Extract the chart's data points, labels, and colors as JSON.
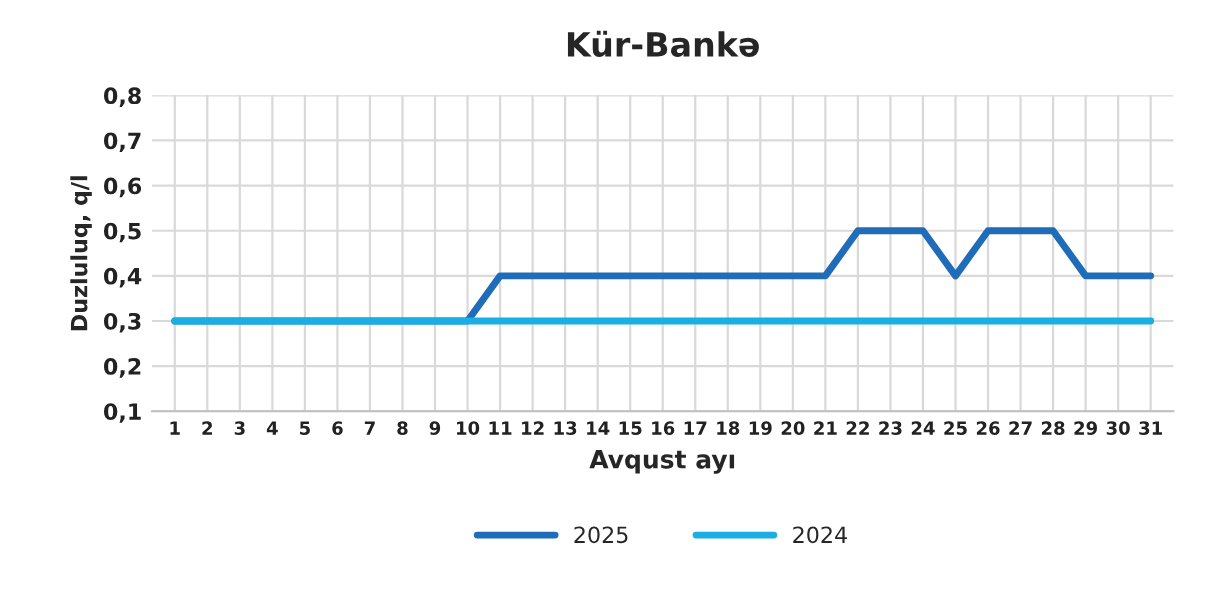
{
  "chart_data": {
    "type": "line",
    "title": "Kür-Bankə",
    "xlabel": "Avqust ayı",
    "ylabel": "Duzluluq, q/l",
    "categories": [
      "1",
      "2",
      "3",
      "4",
      "5",
      "6",
      "7",
      "8",
      "9",
      "10",
      "11",
      "12",
      "13",
      "14",
      "15",
      "16",
      "17",
      "18",
      "19",
      "20",
      "21",
      "22",
      "23",
      "24",
      "25",
      "26",
      "27",
      "28",
      "29",
      "30",
      "31"
    ],
    "series": [
      {
        "name": "2025",
        "color": "#1f6db8",
        "values": [
          0.3,
          0.3,
          0.3,
          0.3,
          0.3,
          0.3,
          0.3,
          0.3,
          0.3,
          0.3,
          0.4,
          0.4,
          0.4,
          0.4,
          0.4,
          0.4,
          0.4,
          0.4,
          0.4,
          0.4,
          0.4,
          0.5,
          0.5,
          0.5,
          0.4,
          0.5,
          0.5,
          0.5,
          0.4,
          0.4,
          0.4
        ]
      },
      {
        "name": "2024",
        "color": "#1aaee5",
        "values": [
          0.3,
          0.3,
          0.3,
          0.3,
          0.3,
          0.3,
          0.3,
          0.3,
          0.3,
          0.3,
          0.3,
          0.3,
          0.3,
          0.3,
          0.3,
          0.3,
          0.3,
          0.3,
          0.3,
          0.3,
          0.3,
          0.3,
          0.3,
          0.3,
          0.3,
          0.3,
          0.3,
          0.3,
          0.3,
          0.3,
          0.3
        ]
      }
    ],
    "ylim": [
      0.1,
      0.8
    ],
    "yticks": [
      {
        "value": 0.1,
        "label": "0,1"
      },
      {
        "value": 0.2,
        "label": "0,2"
      },
      {
        "value": 0.3,
        "label": "0,3"
      },
      {
        "value": 0.4,
        "label": "0,4"
      },
      {
        "value": 0.5,
        "label": "0,5"
      },
      {
        "value": 0.6,
        "label": "0,6"
      },
      {
        "value": 0.7,
        "label": "0,7"
      },
      {
        "value": 0.8,
        "label": "0,8"
      }
    ],
    "grid": true,
    "legend": "bottom",
    "marker": "none",
    "line_style": "solid"
  }
}
